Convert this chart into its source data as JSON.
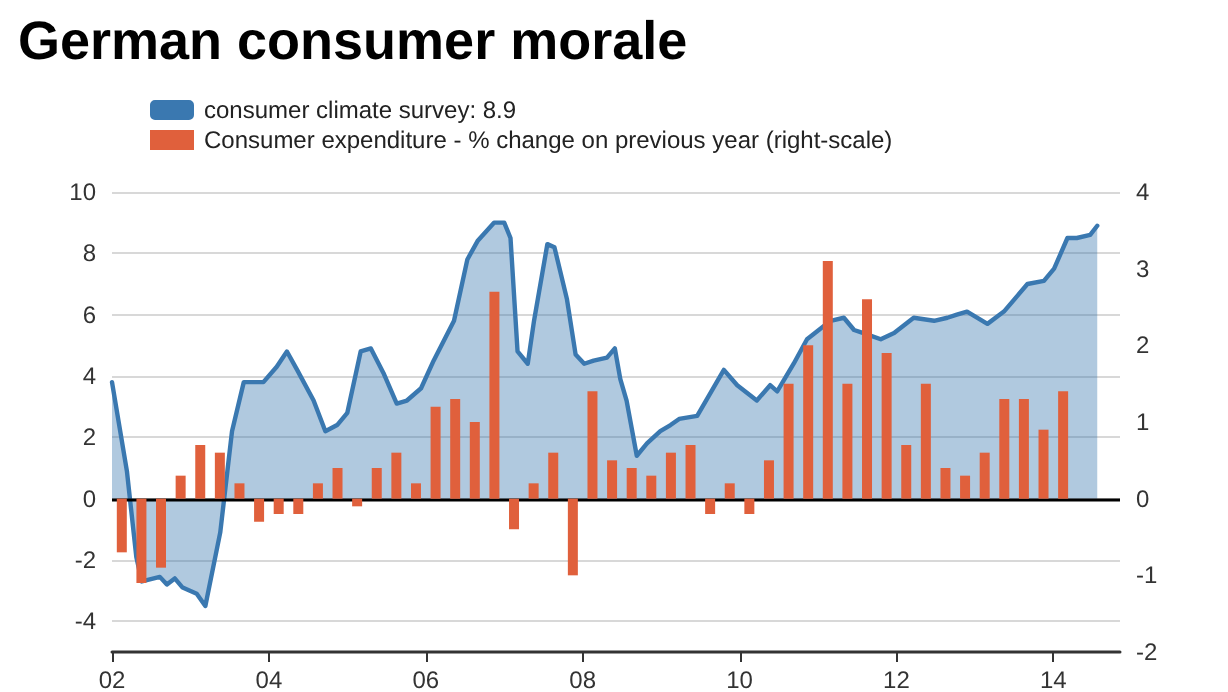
{
  "chart_data": {
    "type": "area",
    "title": "German consumer morale",
    "series": [
      {
        "name": "consumer climate survey: 8.9",
        "color": "#3a78b0",
        "x": [
          2002.0,
          2002.19,
          2002.31,
          2002.38,
          2002.61,
          2002.7,
          2002.8,
          2002.9,
          2003.08,
          2003.19,
          2003.38,
          2003.53,
          2003.68,
          2003.93,
          2004.1,
          2004.23,
          2004.36,
          2004.57,
          2004.72,
          2004.87,
          2005.0,
          2005.17,
          2005.3,
          2005.46,
          2005.63,
          2005.76,
          2005.94,
          2006.1,
          2006.36,
          2006.53,
          2006.66,
          2006.87,
          2007.0,
          2007.08,
          2007.17,
          2007.3,
          2007.38,
          2007.55,
          2007.64,
          2007.8,
          2007.91,
          2008.02,
          2008.14,
          2008.31,
          2008.41,
          2008.48,
          2008.56,
          2008.69,
          2008.82,
          2008.99,
          2009.12,
          2009.23,
          2009.46,
          2009.8,
          2009.97,
          2010.22,
          2010.39,
          2010.48,
          2010.69,
          2010.86,
          2011.16,
          2011.33,
          2011.46,
          2011.58,
          2011.8,
          2011.97,
          2012.22,
          2012.48,
          2012.65,
          2012.77,
          2012.9,
          2013.16,
          2013.37,
          2013.67,
          2013.88,
          2014.01,
          2014.18,
          2014.3,
          2014.47,
          2014.56
        ],
        "values": [
          3.8,
          0.9,
          -1.9,
          -2.7,
          -2.55,
          -2.8,
          -2.6,
          -2.9,
          -3.1,
          -3.5,
          -1.1,
          2.2,
          3.8,
          3.8,
          4.3,
          4.8,
          4.2,
          3.2,
          2.2,
          2.4,
          2.8,
          4.8,
          4.9,
          4.1,
          3.1,
          3.2,
          3.6,
          4.5,
          5.8,
          7.8,
          8.4,
          9.0,
          9.0,
          8.5,
          4.8,
          4.4,
          5.8,
          8.3,
          8.2,
          6.5,
          4.7,
          4.4,
          4.5,
          4.6,
          4.9,
          3.9,
          3.2,
          1.4,
          1.8,
          2.2,
          2.4,
          2.6,
          2.7,
          4.2,
          3.7,
          3.2,
          3.7,
          3.5,
          4.4,
          5.2,
          5.8,
          5.9,
          5.5,
          5.4,
          5.2,
          5.4,
          5.9,
          5.8,
          5.9,
          6.0,
          6.1,
          5.7,
          6.1,
          7.0,
          7.1,
          7.5,
          8.5,
          8.5,
          8.6,
          8.9
        ]
      },
      {
        "name": "Consumer expenditure - % change on previous year (right-scale)",
        "type": "bar",
        "axis": "y2",
        "color": "#e0603c",
        "x": [
          2002.125,
          2002.375,
          2002.625,
          2002.875,
          2003.125,
          2003.375,
          2003.625,
          2003.875,
          2004.125,
          2004.375,
          2004.625,
          2004.875,
          2005.125,
          2005.375,
          2005.625,
          2005.875,
          2006.125,
          2006.375,
          2006.625,
          2006.875,
          2007.125,
          2007.375,
          2007.625,
          2007.875,
          2008.125,
          2008.375,
          2008.625,
          2008.875,
          2009.125,
          2009.375,
          2009.625,
          2009.875,
          2010.125,
          2010.375,
          2010.625,
          2010.875,
          2011.125,
          2011.375,
          2011.625,
          2011.875,
          2012.125,
          2012.375,
          2012.625,
          2012.875,
          2013.125,
          2013.375,
          2013.625,
          2013.875,
          2014.125
        ],
        "values": [
          -0.7,
          -1.1,
          -0.9,
          0.3,
          0.7,
          0.6,
          0.2,
          -0.3,
          -0.2,
          -0.2,
          0.2,
          0.4,
          -0.1,
          0.4,
          0.6,
          0.2,
          1.2,
          1.3,
          1.0,
          2.7,
          -0.4,
          0.2,
          0.6,
          -1.0,
          1.4,
          0.5,
          0.4,
          0.3,
          0.6,
          0.7,
          -0.2,
          0.2,
          -0.2,
          0.5,
          1.5,
          2.0,
          3.1,
          1.5,
          2.6,
          1.9,
          0.7,
          1.5,
          0.4,
          0.3,
          0.6,
          1.3,
          1.3,
          0.9,
          1.4
        ]
      }
    ],
    "xlim": [
      2002,
      2014.85
    ],
    "xticks": [
      {
        "value": 2002,
        "label": "02"
      },
      {
        "value": 2004,
        "label": "04"
      },
      {
        "value": 2006,
        "label": "06"
      },
      {
        "value": 2008,
        "label": "08"
      },
      {
        "value": 2010,
        "label": "10"
      },
      {
        "value": 2012,
        "label": "12"
      },
      {
        "value": 2014,
        "label": "14"
      }
    ],
    "ylim": [
      -5,
      10
    ],
    "yticks": [
      -4,
      -2,
      0,
      2,
      4,
      6,
      8,
      10
    ],
    "y2lim": [
      -2,
      4
    ],
    "y2ticks": [
      -2,
      -1,
      0,
      1,
      2,
      3,
      4
    ],
    "ref_lines": [
      {
        "axis": "y",
        "value": 0,
        "color": "#000000"
      }
    ],
    "grid": "y",
    "legend": "top left"
  }
}
